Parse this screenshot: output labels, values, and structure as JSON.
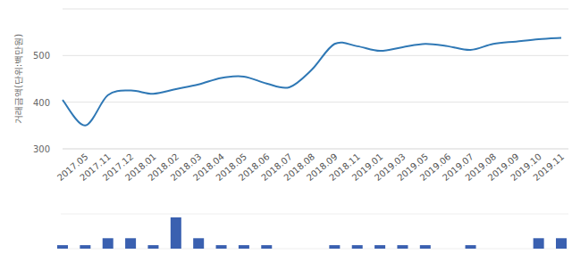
{
  "chart_data": [
    {
      "type": "line",
      "y_label": "거래금액(단위:백만원)",
      "categories": [
        null,
        "2017.05",
        "2017.11",
        "2017.12",
        "2018.01",
        "2018.02",
        "2018.03",
        "2018.04",
        "2018.05",
        "2018.06",
        "2018.07",
        "2018.08",
        "2018.09",
        "2018.11",
        "2019.01",
        "2019.03",
        "2019.05",
        "2019.06",
        "2019.07",
        "2019.08",
        "2019.09",
        "2019.10",
        "2019.11"
      ],
      "values": [
        405,
        350,
        415,
        425,
        418,
        428,
        438,
        452,
        455,
        440,
        432,
        470,
        525,
        520,
        510,
        518,
        525,
        520,
        512,
        525,
        530,
        535,
        538
      ],
      "color": "#2f78b5",
      "ylim": [
        300,
        600
      ],
      "yticks": [
        300,
        400,
        500
      ],
      "grid": true
    },
    {
      "type": "bar",
      "categories": [
        null,
        "2017.05",
        "2017.11",
        "2017.12",
        "2018.01",
        "2018.02",
        "2018.03",
        "2018.04",
        "2018.05",
        "2018.06",
        "2018.07",
        "2018.08",
        "2018.09",
        "2018.11",
        "2019.01",
        "2019.03",
        "2019.05",
        "2019.06",
        "2019.07",
        "2019.08",
        "2019.09",
        "2019.10",
        "2019.11"
      ],
      "values": [
        1,
        1,
        3,
        3,
        1,
        9,
        3,
        1,
        1,
        1,
        null,
        null,
        1,
        1,
        1,
        1,
        1,
        null,
        1,
        null,
        null,
        3,
        3
      ],
      "color": "#3a60b0",
      "ylim": [
        0,
        10
      ],
      "tick_labels": false
    }
  ]
}
